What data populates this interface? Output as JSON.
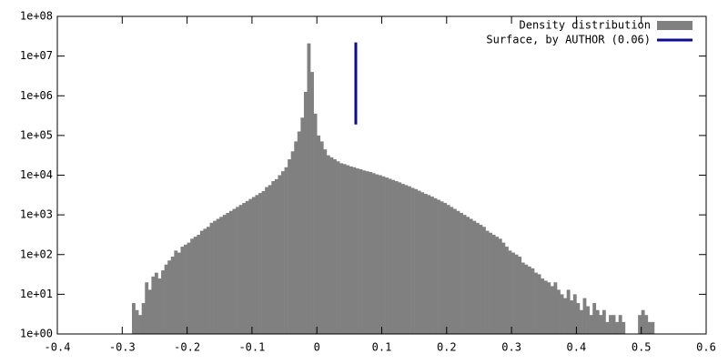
{
  "chart_data": {
    "type": "histogram",
    "log_y": true,
    "bins": [
      -0.285,
      -0.28,
      -0.275,
      -0.27,
      -0.265,
      -0.26,
      -0.255,
      -0.25,
      -0.245,
      -0.24,
      -0.235,
      -0.23,
      -0.225,
      -0.22,
      -0.215,
      -0.21,
      -0.205,
      -0.2,
      -0.195,
      -0.19,
      -0.185,
      -0.18,
      -0.175,
      -0.17,
      -0.165,
      -0.16,
      -0.155,
      -0.15,
      -0.145,
      -0.14,
      -0.135,
      -0.13,
      -0.125,
      -0.12,
      -0.115,
      -0.11,
      -0.105,
      -0.1,
      -0.095,
      -0.09,
      -0.085,
      -0.08,
      -0.075,
      -0.07,
      -0.065,
      -0.06,
      -0.055,
      -0.05,
      -0.045,
      -0.04,
      -0.035,
      -0.03,
      -0.025,
      -0.02,
      -0.015,
      -0.01,
      -0.005,
      0,
      0.005,
      0.01,
      0.015,
      0.02,
      0.025,
      0.03,
      0.035,
      0.04,
      0.045,
      0.05,
      0.055,
      0.06,
      0.065,
      0.07,
      0.075,
      0.08,
      0.085,
      0.09,
      0.095,
      0.1,
      0.105,
      0.11,
      0.115,
      0.12,
      0.125,
      0.13,
      0.135,
      0.14,
      0.145,
      0.15,
      0.155,
      0.16,
      0.165,
      0.17,
      0.175,
      0.18,
      0.185,
      0.19,
      0.195,
      0.2,
      0.205,
      0.21,
      0.215,
      0.22,
      0.225,
      0.23,
      0.235,
      0.24,
      0.245,
      0.25,
      0.255,
      0.26,
      0.265,
      0.27,
      0.275,
      0.28,
      0.285,
      0.29,
      0.295,
      0.3,
      0.305,
      0.31,
      0.315,
      0.32,
      0.325,
      0.33,
      0.335,
      0.34,
      0.345,
      0.35,
      0.355,
      0.36,
      0.365,
      0.37,
      0.375,
      0.38,
      0.385,
      0.39,
      0.395,
      0.4,
      0.405,
      0.41,
      0.415,
      0.42,
      0.425,
      0.43,
      0.435,
      0.44,
      0.445,
      0.45,
      0.455,
      0.46,
      0.465,
      0.47,
      0.475,
      0.48,
      0.485,
      0.49,
      0.495,
      0.5,
      0.505,
      0.51,
      0.515,
      0.52
    ],
    "series": [
      {
        "name": "Density distribution",
        "color": "#808080",
        "values": [
          6,
          4,
          3,
          6,
          20,
          13,
          28,
          35,
          25,
          40,
          56,
          71,
          89,
          126,
          112,
          158,
          178,
          200,
          251,
          282,
          316,
          398,
          447,
          501,
          631,
          708,
          794,
          891,
          1000,
          1122,
          1259,
          1413,
          1585,
          1778,
          1995,
          2239,
          2512,
          2818,
          3162,
          3548,
          3981,
          5012,
          5623,
          7079,
          7943,
          10000,
          12589,
          15849,
          25119,
          39811,
          70795,
          125893,
          281838,
          1258925,
          20892961,
          3981072,
          354813,
          100000,
          70795,
          44668,
          31623,
          28184,
          25119,
          22387,
          19953,
          19055,
          17783,
          16596,
          15849,
          14791,
          14125,
          13183,
          12589,
          12023,
          11220,
          10471,
          10000,
          9333,
          8710,
          8128,
          7586,
          7079,
          6607,
          6026,
          5623,
          5248,
          4786,
          4467,
          4074,
          3715,
          3388,
          3162,
          2884,
          2630,
          2399,
          2188,
          1995,
          1778,
          1585,
          1413,
          1259,
          1122,
          1000,
          891,
          794,
          708,
          631,
          562,
          501,
          398,
          355,
          316,
          282,
          251,
          200,
          158,
          126,
          112,
          100,
          89,
          63,
          56,
          50,
          45,
          35,
          32,
          25,
          22,
          20,
          16,
          20,
          13,
          10,
          8,
          13,
          7,
          10,
          6,
          4,
          8,
          5,
          3,
          6,
          4,
          3,
          4,
          2,
          3,
          3,
          2,
          3,
          2,
          0,
          0,
          0,
          0,
          3,
          4,
          3,
          2,
          2
        ]
      },
      {
        "name": "Surface, by AUTHOR (0.06)",
        "color": "#0a0aa0",
        "type": "line",
        "x": [
          0.06,
          0.06
        ],
        "values": [
          190000,
          22000000
        ]
      }
    ],
    "xlim": [
      -0.4,
      0.6
    ],
    "xticks": [
      -0.4,
      -0.3,
      -0.2,
      -0.1,
      0,
      0.1,
      0.2,
      0.3,
      0.4,
      0.5,
      0.6
    ],
    "ylim": [
      1,
      100000000
    ],
    "yticks": [
      {
        "value": 1,
        "label": "1e+00"
      },
      {
        "value": 10,
        "label": "1e+01"
      },
      {
        "value": 100,
        "label": "1e+02"
      },
      {
        "value": 1000,
        "label": "1e+03"
      },
      {
        "value": 10000,
        "label": "1e+04"
      },
      {
        "value": 100000,
        "label": "1e+05"
      },
      {
        "value": 1000000,
        "label": "1e+06"
      },
      {
        "value": 10000000,
        "label": "1e+07"
      },
      {
        "value": 100000000,
        "label": "1e+08"
      }
    ],
    "legend": "upper right"
  }
}
